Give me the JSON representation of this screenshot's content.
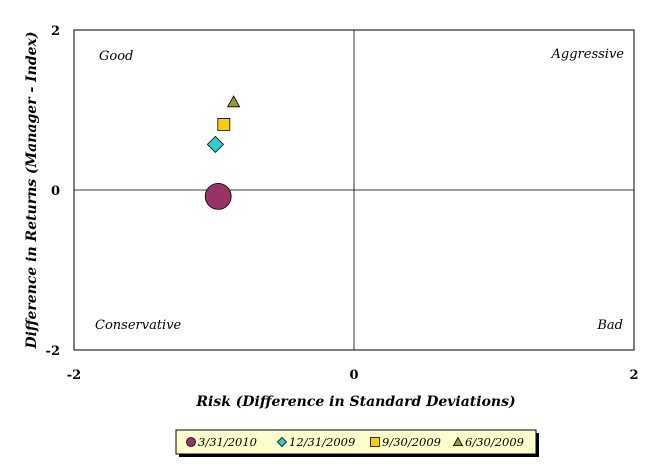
{
  "chart_data": {
    "type": "scatter",
    "title": "",
    "xlabel": "Risk (Difference in Standard Deviations)",
    "ylabel": "Difference in Returns (Manager - Index)",
    "xlim": [
      -2,
      2
    ],
    "ylim": [
      -2,
      2
    ],
    "x_ticks": [
      "-2",
      "0",
      "2"
    ],
    "y_ticks": [
      "2",
      "0",
      "-2"
    ],
    "grid": false,
    "reference_lines": {
      "x": 0,
      "y": 0
    },
    "quadrant_labels": {
      "top_left": "Good",
      "top_right": "Aggressive",
      "bottom_left": "Conservative",
      "bottom_right": "Bad"
    },
    "legend_position": "bottom",
    "series": [
      {
        "name": "3/31/2010",
        "x": -0.97,
        "y": -0.08,
        "marker": "circle",
        "color": "#993366",
        "size": "large"
      },
      {
        "name": "12/31/2009",
        "x": -0.99,
        "y": 0.57,
        "marker": "diamond",
        "color": "#33CCCC"
      },
      {
        "name": "9/30/2009",
        "x": -0.93,
        "y": 0.82,
        "marker": "square",
        "color": "#FFCC00"
      },
      {
        "name": "6/30/2009",
        "x": -0.86,
        "y": 1.1,
        "marker": "triangle",
        "color": "#999933"
      }
    ]
  }
}
